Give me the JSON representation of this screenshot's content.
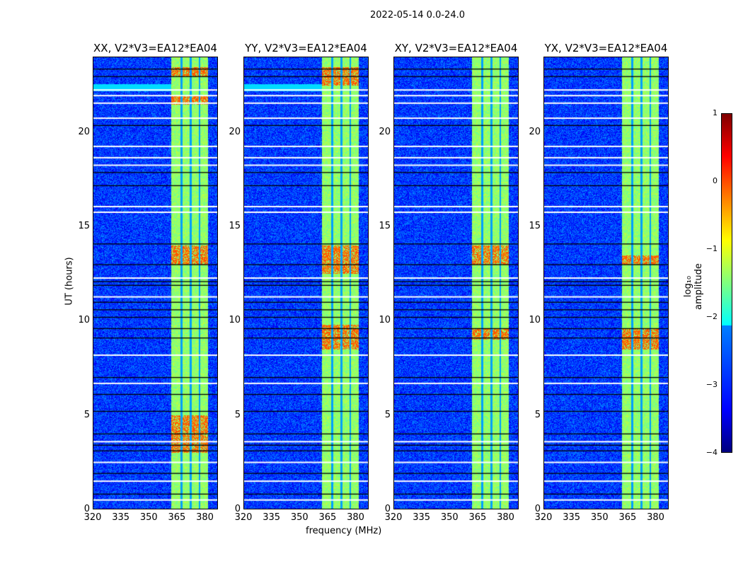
{
  "chart_data": {
    "type": "heatmap",
    "title": "2022-05-14 0.0-24.0",
    "xlabel": "frequency (MHz)",
    "ylabel": "UT (hours)",
    "xlim": [
      320,
      387
    ],
    "ylim": [
      0,
      24
    ],
    "xticks": [
      "320",
      "335",
      "350",
      "365",
      "380"
    ],
    "xtick_values": [
      320,
      335,
      350,
      365,
      380
    ],
    "yticks": [
      "0",
      "5",
      "10",
      "15",
      "20"
    ],
    "ytick_values": [
      0,
      5,
      10,
      15,
      20
    ],
    "panels": [
      {
        "title": "XX, V2*V3=EA12*EA04",
        "cyan_band": true,
        "hot_hours": [
          [
            3,
            5
          ],
          [
            13,
            14
          ],
          [
            21.5,
            22
          ],
          [
            23,
            23.5
          ]
        ]
      },
      {
        "title": "YY, V2*V3=EA12*EA04",
        "cyan_band": true,
        "hot_hours": [
          [
            8.5,
            9.8
          ],
          [
            12.5,
            14
          ],
          [
            22.5,
            23.5
          ]
        ]
      },
      {
        "title": "XY, V2*V3=EA12*EA04",
        "cyan_band": false,
        "hot_hours": [
          [
            9,
            9.6
          ],
          [
            13,
            14
          ]
        ]
      },
      {
        "title": "YX, V2*V3=EA12*EA04",
        "cyan_band": false,
        "hot_hours": [
          [
            8.5,
            9.6
          ],
          [
            13,
            13.5
          ]
        ]
      }
    ],
    "rfi_band_mhz": [
      362,
      382
    ],
    "rfi_gaps_mhz": [
      367.5,
      372.5,
      377.3
    ],
    "flagged_hours_white": [
      0.5,
      1.5,
      2.5,
      3.6,
      6.7,
      8.2,
      11.3,
      12.3,
      15.8,
      16.1,
      18.3,
      18.7,
      19.3,
      20.8,
      21.6,
      22.0,
      22.3
    ],
    "flagged_hours_black": [
      0.8,
      1.9,
      3.1,
      3.4,
      4.0,
      5.2,
      6.1,
      7.0,
      9.1,
      9.6,
      10.2,
      10.6,
      11.0,
      11.9,
      12.1,
      13.0,
      14.1,
      17.2,
      17.9,
      20.4,
      23.0,
      23.4
    ],
    "colorbar": {
      "label": "log₁₀ amplitude",
      "range": [
        -4,
        1
      ],
      "ticks": [
        "1",
        "0",
        "−1",
        "−2",
        "−3",
        "−4"
      ],
      "tick_values": [
        1,
        0,
        -1,
        -2,
        -3,
        -4
      ]
    }
  }
}
